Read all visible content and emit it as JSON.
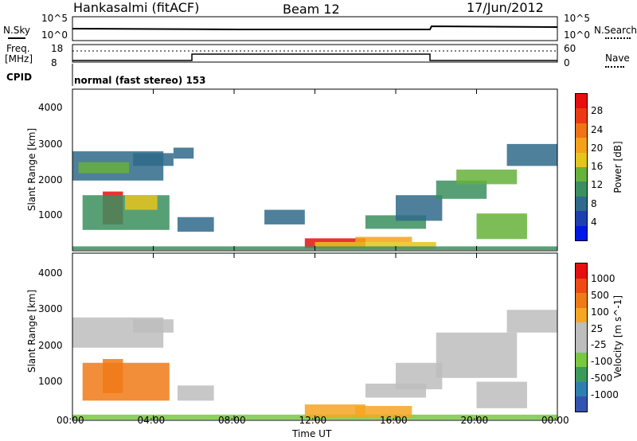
{
  "header": {
    "station": "Hankasalmi (fitACF)",
    "beam": "Beam 12",
    "date": "17/Jun/2012"
  },
  "noise_panel": {
    "left_label": "N.Sky",
    "right_label": "N.Search",
    "ticks_left": [
      "10^5",
      "10^0"
    ],
    "ticks_right": [
      "10^5",
      "10^0"
    ]
  },
  "freq_panel": {
    "left_label_1": "Freq.",
    "left_label_2": "[MHz]",
    "left_ticks": [
      "18",
      "8"
    ],
    "right_ticks": [
      "60",
      "0"
    ],
    "right_label": "Nave"
  },
  "cpid": {
    "label": "CPID",
    "text": "normal (fast stereo) 153"
  },
  "time_axis": {
    "label": "Time UT",
    "ticks": [
      "00:00",
      "04:00",
      "08:00",
      "12:00",
      "16:00",
      "20:00",
      "00:00"
    ]
  },
  "colors": {
    "power_scale": [
      "#0018e6",
      "#1e3fb0",
      "#2f6a8a",
      "#3a8f5e",
      "#66b23a",
      "#e6c41d",
      "#f6a11a",
      "#f07316",
      "#ec3a14",
      "#e60e0e"
    ],
    "velocity_scale": [
      "#3353b0",
      "#2d7fb0",
      "#3d9a5a",
      "#78c843",
      "#bdbdbd",
      "#bdbdbd",
      "#f5a623",
      "#f07a16",
      "#ee4a14",
      "#e61010"
    ]
  },
  "chart_data": [
    {
      "type": "heatmap",
      "title": "",
      "quantity": "Power",
      "xlabel": "Time UT",
      "ylabel": "Slant Range [km]",
      "xlim": [
        0,
        24
      ],
      "ylim": [
        180,
        4600
      ],
      "yticks": [
        "1000",
        "2000",
        "3000",
        "4000"
      ],
      "colorbar_label": "Power [dB]",
      "colorbar_ticks": [
        "4",
        "8",
        "12",
        "16",
        "20",
        "24",
        "28"
      ],
      "regions": [
        {
          "t": [
            0.0,
            4.5
          ],
          "r": [
            2100,
            2900
          ],
          "level": 2
        },
        {
          "t": [
            0.3,
            2.8
          ],
          "r": [
            2300,
            2600
          ],
          "level": 4
        },
        {
          "t": [
            3.0,
            5.0
          ],
          "r": [
            2500,
            2850
          ],
          "level": 2
        },
        {
          "t": [
            1.5,
            2.5
          ],
          "r": [
            900,
            1800
          ],
          "level": 9
        },
        {
          "t": [
            0.5,
            4.8
          ],
          "r": [
            750,
            1700
          ],
          "level": 3
        },
        {
          "t": [
            2.6,
            4.2
          ],
          "r": [
            1300,
            1700
          ],
          "level": 5
        },
        {
          "t": [
            5.2,
            7.0
          ],
          "r": [
            700,
            1100
          ],
          "level": 2
        },
        {
          "t": [
            9.5,
            11.5
          ],
          "r": [
            900,
            1300
          ],
          "level": 2
        },
        {
          "t": [
            11.5,
            14.5
          ],
          "r": [
            250,
            520
          ],
          "level": 9
        },
        {
          "t": [
            12.0,
            18.0
          ],
          "r": [
            230,
            420
          ],
          "level": 5
        },
        {
          "t": [
            14.0,
            16.8
          ],
          "r": [
            420,
            560
          ],
          "level": 6
        },
        {
          "t": [
            14.5,
            17.5
          ],
          "r": [
            780,
            1150
          ],
          "level": 3
        },
        {
          "t": [
            16.0,
            18.3
          ],
          "r": [
            1000,
            1700
          ],
          "level": 2
        },
        {
          "t": [
            18.0,
            20.5
          ],
          "r": [
            1600,
            2100
          ],
          "level": 3
        },
        {
          "t": [
            19.0,
            22.0
          ],
          "r": [
            2000,
            2400
          ],
          "level": 4
        },
        {
          "t": [
            21.5,
            24.0
          ],
          "r": [
            2500,
            3100
          ],
          "level": 2
        },
        {
          "t": [
            20.0,
            22.5
          ],
          "r": [
            500,
            1200
          ],
          "level": 4
        },
        {
          "t": [
            0.0,
            24.0
          ],
          "r": [
            200,
            300
          ],
          "level": 3
        },
        {
          "t": [
            5.0,
            6.0
          ],
          "r": [
            2700,
            3000
          ],
          "level": 2
        }
      ]
    },
    {
      "type": "heatmap",
      "title": "",
      "quantity": "Velocity",
      "xlabel": "Time UT",
      "ylabel": "Slant Range [km]",
      "xlim": [
        0,
        24
      ],
      "ylim": [
        180,
        4600
      ],
      "yticks": [
        "1000",
        "2000",
        "3000",
        "4000"
      ],
      "colorbar_label": "Velocity [m s^-1]",
      "colorbar_ticks": [
        "1000",
        "500",
        "100",
        "25",
        "-25",
        "-100",
        "-500",
        "-1000"
      ],
      "regions": [
        {
          "t": [
            0.0,
            4.5
          ],
          "r": [
            2100,
            2900
          ],
          "level": 4
        },
        {
          "t": [
            3.0,
            5.0
          ],
          "r": [
            2500,
            2850
          ],
          "level": 4
        },
        {
          "t": [
            0.5,
            4.8
          ],
          "r": [
            700,
            1700
          ],
          "level": 7
        },
        {
          "t": [
            1.5,
            2.5
          ],
          "r": [
            900,
            1800
          ],
          "level": 7
        },
        {
          "t": [
            5.2,
            7.0
          ],
          "r": [
            700,
            1100
          ],
          "level": 4
        },
        {
          "t": [
            0.0,
            24.0
          ],
          "r": [
            200,
            330
          ],
          "level": 3
        },
        {
          "t": [
            11.5,
            14.5
          ],
          "r": [
            250,
            600
          ],
          "level": 6
        },
        {
          "t": [
            14.0,
            16.8
          ],
          "r": [
            250,
            560
          ],
          "level": 6
        },
        {
          "t": [
            14.5,
            17.5
          ],
          "r": [
            780,
            1150
          ],
          "level": 4
        },
        {
          "t": [
            16.0,
            18.3
          ],
          "r": [
            1000,
            1700
          ],
          "level": 4
        },
        {
          "t": [
            18.0,
            22.0
          ],
          "r": [
            1300,
            2500
          ],
          "level": 4
        },
        {
          "t": [
            21.5,
            24.0
          ],
          "r": [
            2500,
            3100
          ],
          "level": 4
        },
        {
          "t": [
            20.0,
            22.5
          ],
          "r": [
            500,
            1200
          ],
          "level": 4
        }
      ]
    }
  ]
}
